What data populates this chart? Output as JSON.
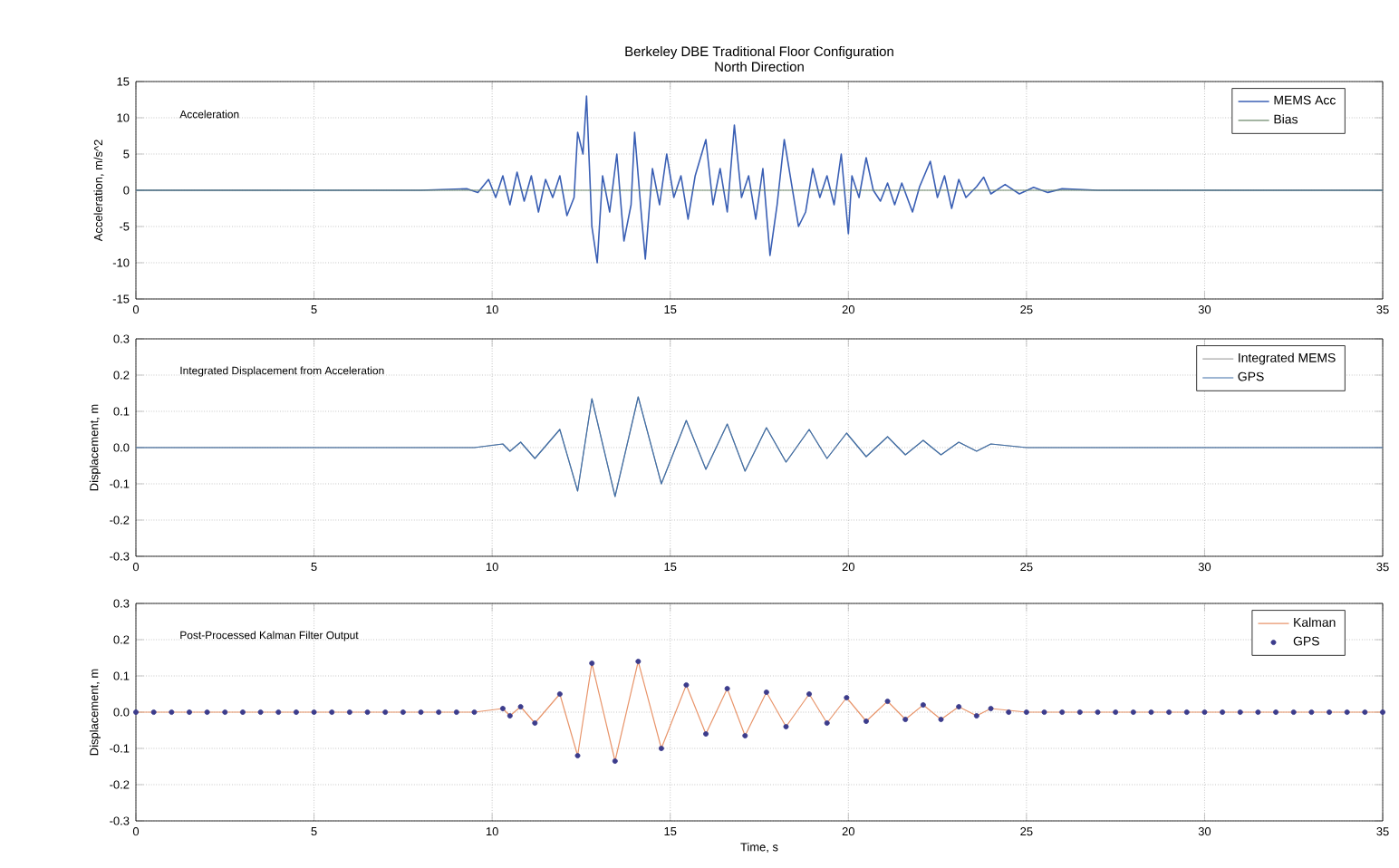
{
  "chart_data": [
    {
      "type": "line",
      "title": "Berkeley DBE Traditional Floor Configuration",
      "subtitle": "North Direction",
      "ylabel": "Acceleration, m/s^2",
      "annotations": [
        "Acceleration"
      ],
      "xlim": [
        0,
        35
      ],
      "xticks": [
        0,
        5,
        10,
        15,
        20,
        25,
        30,
        35
      ],
      "ylim": [
        -15,
        15
      ],
      "yticks": [
        -15,
        -10,
        -5,
        0,
        5,
        10,
        15
      ],
      "grid": true,
      "legend": "top right",
      "series": [
        {
          "name": "MEMS Acc",
          "color": "#3a5fb4",
          "x": [
            0,
            8,
            9.3,
            9.6,
            9.9,
            10.1,
            10.3,
            10.5,
            10.7,
            10.9,
            11.1,
            11.3,
            11.5,
            11.7,
            11.9,
            12.1,
            12.3,
            12.4,
            12.55,
            12.65,
            12.8,
            12.95,
            13.1,
            13.3,
            13.5,
            13.7,
            13.9,
            14.0,
            14.2,
            14.3,
            14.5,
            14.7,
            14.9,
            15.1,
            15.3,
            15.5,
            15.7,
            16.0,
            16.2,
            16.4,
            16.6,
            16.8,
            17.0,
            17.2,
            17.4,
            17.6,
            17.8,
            18.0,
            18.2,
            18.4,
            18.6,
            18.8,
            19.0,
            19.2,
            19.4,
            19.6,
            19.8,
            20.0,
            20.1,
            20.3,
            20.5,
            20.7,
            20.9,
            21.1,
            21.3,
            21.5,
            21.8,
            22.0,
            22.3,
            22.5,
            22.7,
            22.9,
            23.1,
            23.3,
            23.6,
            23.8,
            24.0,
            24.4,
            24.8,
            25.2,
            25.6,
            26,
            27,
            35
          ],
          "values": [
            0,
            0,
            0.2,
            -0.3,
            1.5,
            -1,
            2,
            -2,
            2.5,
            -1.5,
            2,
            -3,
            1.5,
            -1,
            2,
            -3.5,
            -1,
            8,
            5,
            13,
            -5,
            -10,
            2,
            -3,
            5,
            -7,
            -2,
            8,
            -4,
            -9.5,
            3,
            -2,
            5,
            -1,
            2,
            -4,
            2,
            7,
            -2,
            3,
            -3,
            9,
            -1,
            2,
            -4,
            3,
            -9,
            -2,
            7,
            1,
            -5,
            -3,
            3,
            -1,
            2,
            -2,
            5,
            -6,
            2,
            -1,
            4.5,
            0,
            -1.5,
            1,
            -2,
            1,
            -3,
            0.5,
            4,
            -1,
            2,
            -2.5,
            1.5,
            -1,
            0.5,
            1.8,
            -0.5,
            0.8,
            -0.5,
            0.4,
            -0.3,
            0.2,
            0,
            0
          ]
        },
        {
          "name": "Bias",
          "color": "#6e8a6c",
          "x": [
            0,
            35
          ],
          "values": [
            0,
            0
          ]
        }
      ]
    },
    {
      "type": "line",
      "ylabel": "Displacement, m",
      "annotations": [
        "Integrated Displacement from Acceleration"
      ],
      "xlim": [
        0,
        35
      ],
      "xticks": [
        0,
        5,
        10,
        15,
        20,
        25,
        30,
        35
      ],
      "ylim": [
        -0.3,
        0.3
      ],
      "yticks": [
        -0.3,
        -0.2,
        -0.1,
        {
          "value": 0,
          "label": "0.0"
        },
        0.1,
        0.2,
        0.3
      ],
      "grid": true,
      "legend": "top right",
      "series": [
        {
          "name": "Integrated MEMS",
          "color": "#a8a8a8",
          "x": [
            0,
            9.5,
            10.3,
            10.5,
            10.8,
            11.2,
            11.9,
            12.4,
            12.8,
            13.45,
            14.1,
            14.75,
            15.45,
            16.0,
            16.6,
            17.1,
            17.7,
            18.25,
            18.9,
            19.4,
            19.95,
            20.5,
            21.1,
            21.6,
            22.1,
            22.6,
            23.1,
            23.6,
            24.0,
            25,
            35
          ],
          "values": [
            0,
            0,
            0.01,
            -0.01,
            0.015,
            -0.03,
            0.05,
            -0.12,
            0.135,
            -0.135,
            0.14,
            -0.1,
            0.075,
            -0.06,
            0.065,
            -0.065,
            0.055,
            -0.04,
            0.05,
            -0.03,
            0.04,
            -0.025,
            0.03,
            -0.02,
            0.02,
            -0.02,
            0.015,
            -0.01,
            0.01,
            0,
            0
          ]
        },
        {
          "name": "GPS",
          "color": "#3f6ea8",
          "x": [
            0,
            9.5,
            10.3,
            10.5,
            10.8,
            11.2,
            11.9,
            12.4,
            12.8,
            13.45,
            14.1,
            14.75,
            15.45,
            16.0,
            16.6,
            17.1,
            17.7,
            18.25,
            18.9,
            19.4,
            19.95,
            20.5,
            21.1,
            21.6,
            22.1,
            22.6,
            23.1,
            23.6,
            24.0,
            25,
            35
          ],
          "values": [
            0,
            0,
            0.01,
            -0.01,
            0.015,
            -0.03,
            0.05,
            -0.12,
            0.135,
            -0.135,
            0.14,
            -0.1,
            0.075,
            -0.06,
            0.065,
            -0.065,
            0.055,
            -0.04,
            0.05,
            -0.03,
            0.04,
            -0.025,
            0.03,
            -0.02,
            0.02,
            -0.02,
            0.015,
            -0.01,
            0.01,
            0,
            0
          ]
        }
      ]
    },
    {
      "type": "line",
      "xlabel": "Time, s",
      "ylabel": "Displacement, m",
      "annotations": [
        "Post-Processed Kalman Filter Output"
      ],
      "xlim": [
        0,
        35
      ],
      "xticks": [
        0,
        5,
        10,
        15,
        20,
        25,
        30,
        35
      ],
      "ylim": [
        -0.3,
        0.3
      ],
      "yticks": [
        -0.3,
        -0.2,
        -0.1,
        {
          "value": 0,
          "label": "0.0"
        },
        0.1,
        0.2,
        0.3
      ],
      "grid": true,
      "legend": "top right",
      "series": [
        {
          "name": "Kalman",
          "color": "#e8956b",
          "x": [
            0,
            9.5,
            10.3,
            10.5,
            10.8,
            11.2,
            11.9,
            12.4,
            12.8,
            13.45,
            14.1,
            14.75,
            15.45,
            16.0,
            16.6,
            17.1,
            17.7,
            18.25,
            18.9,
            19.4,
            19.95,
            20.5,
            21.1,
            21.6,
            22.1,
            22.6,
            23.1,
            23.6,
            24.0,
            25,
            35
          ],
          "values": [
            0,
            0,
            0.01,
            -0.01,
            0.015,
            -0.03,
            0.05,
            -0.12,
            0.135,
            -0.135,
            0.14,
            -0.1,
            0.075,
            -0.06,
            0.065,
            -0.065,
            0.055,
            -0.04,
            0.05,
            -0.03,
            0.04,
            -0.025,
            0.03,
            -0.02,
            0.02,
            -0.02,
            0.015,
            -0.01,
            0.01,
            0,
            0
          ]
        },
        {
          "name": "GPS",
          "type": "scatter",
          "marker": "circle",
          "color": "#3c3c8c",
          "x": [
            0,
            0.5,
            1,
            1.5,
            2,
            2.5,
            3,
            3.5,
            4,
            4.5,
            5,
            5.5,
            6,
            6.5,
            7,
            7.5,
            8,
            8.5,
            9,
            9.5,
            10.3,
            10.5,
            10.8,
            11.2,
            11.9,
            12.4,
            12.8,
            13.45,
            14.1,
            14.75,
            15.45,
            16.0,
            16.6,
            17.1,
            17.7,
            18.25,
            18.9,
            19.4,
            19.95,
            20.5,
            21.1,
            21.6,
            22.1,
            22.6,
            23.1,
            23.6,
            24.0,
            24.5,
            25,
            25.5,
            26,
            26.5,
            27,
            27.5,
            28,
            28.5,
            29,
            29.5,
            30,
            30.5,
            31,
            31.5,
            32,
            32.5,
            33,
            33.5,
            34,
            34.5,
            35
          ],
          "values": [
            0,
            0,
            0,
            0,
            0,
            0,
            0,
            0,
            0,
            0,
            0,
            0,
            0,
            0,
            0,
            0,
            0,
            0,
            0,
            0,
            0.01,
            -0.01,
            0.015,
            -0.03,
            0.05,
            -0.12,
            0.135,
            -0.135,
            0.14,
            -0.1,
            0.075,
            -0.06,
            0.065,
            -0.065,
            0.055,
            -0.04,
            0.05,
            -0.03,
            0.04,
            -0.025,
            0.03,
            -0.02,
            0.02,
            -0.02,
            0.015,
            -0.01,
            0.01,
            0,
            0,
            0,
            0,
            0,
            0,
            0,
            0,
            0,
            0,
            0,
            0,
            0,
            0,
            0,
            0,
            0,
            0,
            0,
            0,
            0,
            0
          ]
        }
      ]
    }
  ]
}
